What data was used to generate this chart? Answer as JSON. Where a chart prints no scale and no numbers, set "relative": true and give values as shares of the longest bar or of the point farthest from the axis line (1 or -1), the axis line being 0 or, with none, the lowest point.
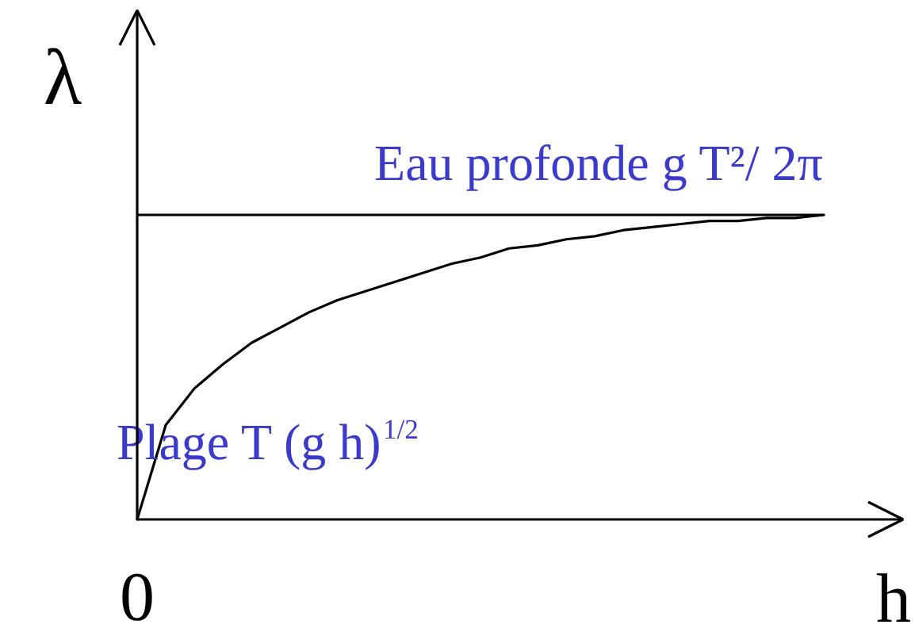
{
  "chart_data": {
    "type": "line",
    "relative": true,
    "xlabel": "h",
    "ylabel": "λ",
    "categories": [
      null,
      null,
      null,
      null,
      null,
      null,
      null,
      null,
      null,
      null,
      null,
      null,
      null,
      null,
      null,
      null,
      null,
      null,
      null,
      null,
      null,
      null,
      null,
      null,
      null
    ],
    "series": [
      {
        "color": "#000000",
        "values": [
          0,
          0.31,
          0.43,
          0.51,
          0.58,
          0.63,
          0.68,
          0.72,
          0.75,
          0.78,
          0.81,
          0.84,
          0.86,
          0.89,
          0.9,
          0.92,
          0.93,
          0.95,
          0.96,
          0.97,
          0.98,
          0.98,
          0.99,
          0.99,
          1
        ]
      }
    ],
    "ref_lines": [
      {
        "axis": "y",
        "value": 1,
        "label": "Eau profonde g T²/ 2π",
        "color": "#000000"
      }
    ],
    "annotations": [
      "Plage T (g h)$^{1/2}$",
      "0"
    ],
    "grid": false
  }
}
